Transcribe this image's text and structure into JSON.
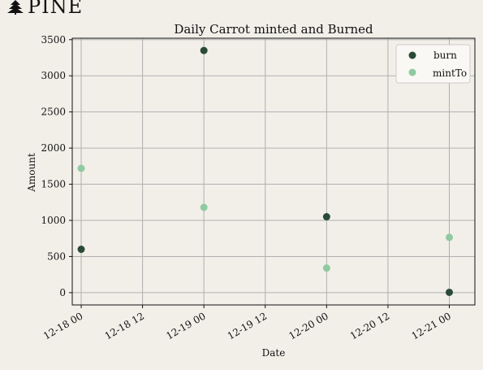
{
  "logo": {
    "text": "PINE"
  },
  "chart_data": {
    "type": "scatter",
    "title": "Daily Carrot minted and Burned",
    "xlabel": "Date",
    "ylabel": "Amount",
    "x_ticks": [
      "12-18 00",
      "12-18 12",
      "12-19 00",
      "12-19 12",
      "12-20 00",
      "12-20 12",
      "12-21 00"
    ],
    "y_ticks": [
      0,
      500,
      1000,
      1500,
      2000,
      2500,
      3000,
      3500
    ],
    "ylim": [
      -170,
      3520
    ],
    "xlim": [
      "2021-12-17 22:15",
      "2021-12-21 05:00"
    ],
    "grid": true,
    "legend_position": "top-right",
    "series": [
      {
        "name": "burn",
        "color": "#2a4a36",
        "points": [
          {
            "x": "2021-12-18 00:00",
            "y": 600
          },
          {
            "x": "2021-12-19 00:00",
            "y": 3350
          },
          {
            "x": "2021-12-20 00:00",
            "y": 1050
          },
          {
            "x": "2021-12-21 00:00",
            "y": 5
          }
        ]
      },
      {
        "name": "mintTo",
        "color": "#8fcaa0",
        "points": [
          {
            "x": "2021-12-18 00:00",
            "y": 1720
          },
          {
            "x": "2021-12-19 00:00",
            "y": 1180
          },
          {
            "x": "2021-12-20 00:00",
            "y": 340
          },
          {
            "x": "2021-12-21 00:00",
            "y": 765
          }
        ]
      }
    ]
  }
}
